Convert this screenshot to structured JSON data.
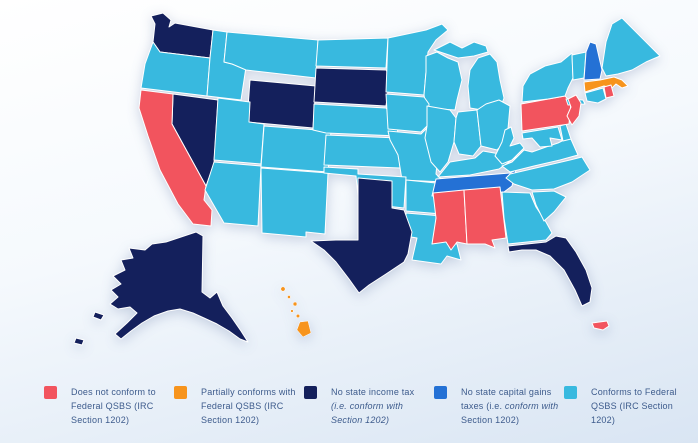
{
  "page": {
    "background_gradient_top": "#FFFFFF",
    "background_gradient_mid": "#F5F9FD",
    "background_gradient_bottom": "#D9E5F3",
    "legend_text_color": "#3D5B8C",
    "state_border_color": "#FFFFFF"
  },
  "map": {
    "description": "US states map of QSBS conformity (choropleth)",
    "categories": {
      "does_not_conform": {
        "label": "Does not conform to Federal QSBS (IRC Section 1202)",
        "color": "#F2545E"
      },
      "partially_conforms": {
        "label": "Partially conforms with Federal QSBS (IRC Section 1202)",
        "color": "#F7941D"
      },
      "no_income_tax": {
        "label": "No state income tax (i.e. conform with Section 1202)",
        "color": "#14205C"
      },
      "no_capital_gains": {
        "label": "No state capital gains taxes (i.e. conform with Section 1202)",
        "color": "#2471D5"
      },
      "conforms": {
        "label": "Conforms to Federal QSBS (IRC Section 1202)",
        "color": "#38B9DF"
      }
    },
    "states": [
      {
        "id": "WA",
        "name": "Washington",
        "category": "no_income_tax"
      },
      {
        "id": "OR",
        "name": "Oregon",
        "category": "conforms"
      },
      {
        "id": "CA",
        "name": "California",
        "category": "does_not_conform"
      },
      {
        "id": "ID",
        "name": "Idaho",
        "category": "conforms"
      },
      {
        "id": "NV",
        "name": "Nevada",
        "category": "no_income_tax"
      },
      {
        "id": "MT",
        "name": "Montana",
        "category": "conforms"
      },
      {
        "id": "WY",
        "name": "Wyoming",
        "category": "no_income_tax"
      },
      {
        "id": "UT",
        "name": "Utah",
        "category": "conforms"
      },
      {
        "id": "CO",
        "name": "Colorado",
        "category": "conforms"
      },
      {
        "id": "AZ",
        "name": "Arizona",
        "category": "conforms"
      },
      {
        "id": "NM",
        "name": "New Mexico",
        "category": "conforms"
      },
      {
        "id": "ND",
        "name": "North Dakota",
        "category": "conforms"
      },
      {
        "id": "SD",
        "name": "South Dakota",
        "category": "no_income_tax"
      },
      {
        "id": "NE",
        "name": "Nebraska",
        "category": "conforms"
      },
      {
        "id": "KS",
        "name": "Kansas",
        "category": "conforms"
      },
      {
        "id": "OK",
        "name": "Oklahoma",
        "category": "conforms"
      },
      {
        "id": "TX",
        "name": "Texas",
        "category": "no_income_tax"
      },
      {
        "id": "MN",
        "name": "Minnesota",
        "category": "conforms"
      },
      {
        "id": "IA",
        "name": "Iowa",
        "category": "conforms"
      },
      {
        "id": "MO",
        "name": "Missouri",
        "category": "conforms"
      },
      {
        "id": "AR",
        "name": "Arkansas",
        "category": "conforms"
      },
      {
        "id": "LA",
        "name": "Louisiana",
        "category": "conforms"
      },
      {
        "id": "WI",
        "name": "Wisconsin",
        "category": "conforms"
      },
      {
        "id": "IL",
        "name": "Illinois",
        "category": "conforms"
      },
      {
        "id": "IN",
        "name": "Indiana",
        "category": "conforms"
      },
      {
        "id": "OH",
        "name": "Ohio",
        "category": "conforms"
      },
      {
        "id": "MI",
        "name": "Michigan",
        "category": "conforms"
      },
      {
        "id": "KY",
        "name": "Kentucky",
        "category": "conforms"
      },
      {
        "id": "TN",
        "name": "Tennessee",
        "category": "no_capital_gains"
      },
      {
        "id": "MS",
        "name": "Mississippi",
        "category": "does_not_conform"
      },
      {
        "id": "AL",
        "name": "Alabama",
        "category": "does_not_conform"
      },
      {
        "id": "GA",
        "name": "Georgia",
        "category": "conforms"
      },
      {
        "id": "FL",
        "name": "Florida",
        "category": "no_income_tax"
      },
      {
        "id": "SC",
        "name": "South Carolina",
        "category": "conforms"
      },
      {
        "id": "NC",
        "name": "North Carolina",
        "category": "conforms"
      },
      {
        "id": "VA",
        "name": "Virginia",
        "category": "conforms"
      },
      {
        "id": "WV",
        "name": "West Virginia",
        "category": "conforms"
      },
      {
        "id": "MD",
        "name": "Maryland",
        "category": "conforms"
      },
      {
        "id": "DE",
        "name": "Delaware",
        "category": "conforms"
      },
      {
        "id": "PA",
        "name": "Pennsylvania",
        "category": "does_not_conform"
      },
      {
        "id": "NJ",
        "name": "New Jersey",
        "category": "does_not_conform"
      },
      {
        "id": "NY",
        "name": "New York",
        "category": "conforms"
      },
      {
        "id": "CT",
        "name": "Connecticut",
        "category": "conforms"
      },
      {
        "id": "RI",
        "name": "Rhode Island",
        "category": "does_not_conform"
      },
      {
        "id": "MA",
        "name": "Massachusetts",
        "category": "partially_conforms"
      },
      {
        "id": "VT",
        "name": "Vermont",
        "category": "conforms"
      },
      {
        "id": "NH",
        "name": "New Hampshire",
        "category": "no_capital_gains"
      },
      {
        "id": "ME",
        "name": "Maine",
        "category": "conforms"
      },
      {
        "id": "AK",
        "name": "Alaska",
        "category": "no_income_tax"
      },
      {
        "id": "HI",
        "name": "Hawaii",
        "category": "partially_conforms"
      },
      {
        "id": "PR",
        "name": "Puerto Rico",
        "category": "does_not_conform"
      }
    ]
  },
  "legend": {
    "items": [
      {
        "category": "does_not_conform",
        "parts": [
          {
            "text": "Does not conform to Federal QSBS (IRC Section 1202)",
            "italic": false
          }
        ]
      },
      {
        "category": "partially_conforms",
        "parts": [
          {
            "text": "Partially conforms with Federal QSBS (IRC Section 1202)",
            "italic": false
          }
        ]
      },
      {
        "category": "no_income_tax",
        "parts": [
          {
            "text": "No state income tax ",
            "italic": false
          },
          {
            "text": "(i.e. conform with Section 1202)",
            "italic": true
          }
        ]
      },
      {
        "category": "no_capital_gains",
        "parts": [
          {
            "text": "No state capital gains taxes (i.e. ",
            "italic": false
          },
          {
            "text": "conform with",
            "italic": true
          },
          {
            "text": " Section 1202)",
            "italic": false
          }
        ]
      },
      {
        "category": "conforms",
        "parts": [
          {
            "text": "Conforms to Federal QSBS (IRC Section 1202)",
            "italic": false
          }
        ]
      }
    ]
  }
}
